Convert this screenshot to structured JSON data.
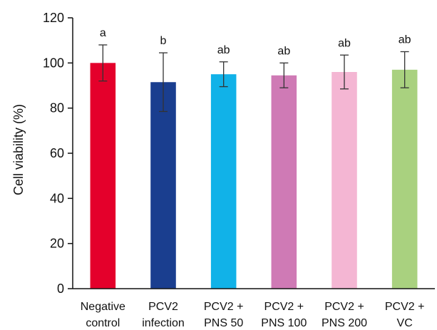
{
  "chart_data": {
    "type": "bar",
    "title": "",
    "xlabel": "",
    "ylabel": "Cell viability (%)",
    "ylim": [
      0,
      120
    ],
    "yticks": [
      0,
      20,
      40,
      60,
      80,
      100,
      120
    ],
    "grid": false,
    "categories": [
      [
        "Negative",
        "control"
      ],
      [
        "PCV2",
        "infection"
      ],
      [
        "PCV2 +",
        "PNS 50"
      ],
      [
        "PCV2 +",
        "PNS 100"
      ],
      [
        "PCV2 +",
        "PNS 200"
      ],
      [
        "PCV2 +",
        "VC"
      ]
    ],
    "values": [
      100,
      91.5,
      95,
      94.5,
      96,
      97
    ],
    "errors": [
      8,
      13,
      5.5,
      5.5,
      7.5,
      8
    ],
    "annotations": [
      "a",
      "b",
      "ab",
      "ab",
      "ab",
      "ab"
    ],
    "colors": [
      "#e4002b",
      "#1a3e8f",
      "#11b2e8",
      "#cf7ab5",
      "#f4b6d3",
      "#a9d17f"
    ]
  }
}
